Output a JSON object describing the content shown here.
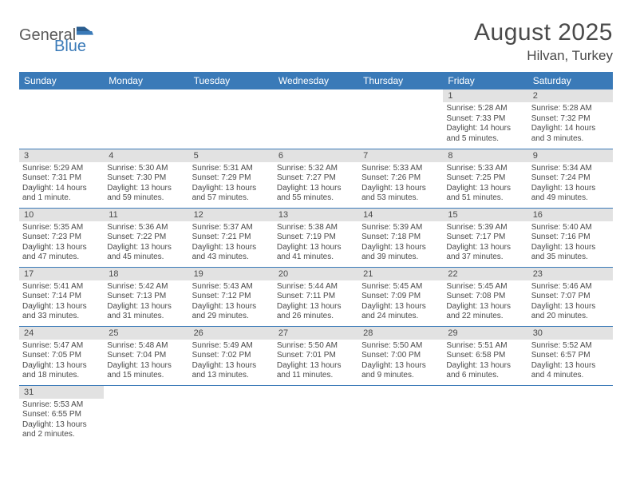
{
  "logo": {
    "general": "General",
    "blue": "Blue"
  },
  "title": "August 2025",
  "location": "Hilvan, Turkey",
  "weekdays": [
    "Sunday",
    "Monday",
    "Tuesday",
    "Wednesday",
    "Thursday",
    "Friday",
    "Saturday"
  ],
  "colors": {
    "header_bg": "#3a7ab8",
    "daynum_bg": "#e2e2e2",
    "border": "#3a7ab8",
    "text": "#4a4a4a"
  },
  "weeks": [
    [
      {
        "n": "",
        "sr": "",
        "ss": "",
        "dl": ""
      },
      {
        "n": "",
        "sr": "",
        "ss": "",
        "dl": ""
      },
      {
        "n": "",
        "sr": "",
        "ss": "",
        "dl": ""
      },
      {
        "n": "",
        "sr": "",
        "ss": "",
        "dl": ""
      },
      {
        "n": "",
        "sr": "",
        "ss": "",
        "dl": ""
      },
      {
        "n": "1",
        "sr": "Sunrise: 5:28 AM",
        "ss": "Sunset: 7:33 PM",
        "dl": "Daylight: 14 hours and 5 minutes."
      },
      {
        "n": "2",
        "sr": "Sunrise: 5:28 AM",
        "ss": "Sunset: 7:32 PM",
        "dl": "Daylight: 14 hours and 3 minutes."
      }
    ],
    [
      {
        "n": "3",
        "sr": "Sunrise: 5:29 AM",
        "ss": "Sunset: 7:31 PM",
        "dl": "Daylight: 14 hours and 1 minute."
      },
      {
        "n": "4",
        "sr": "Sunrise: 5:30 AM",
        "ss": "Sunset: 7:30 PM",
        "dl": "Daylight: 13 hours and 59 minutes."
      },
      {
        "n": "5",
        "sr": "Sunrise: 5:31 AM",
        "ss": "Sunset: 7:29 PM",
        "dl": "Daylight: 13 hours and 57 minutes."
      },
      {
        "n": "6",
        "sr": "Sunrise: 5:32 AM",
        "ss": "Sunset: 7:27 PM",
        "dl": "Daylight: 13 hours and 55 minutes."
      },
      {
        "n": "7",
        "sr": "Sunrise: 5:33 AM",
        "ss": "Sunset: 7:26 PM",
        "dl": "Daylight: 13 hours and 53 minutes."
      },
      {
        "n": "8",
        "sr": "Sunrise: 5:33 AM",
        "ss": "Sunset: 7:25 PM",
        "dl": "Daylight: 13 hours and 51 minutes."
      },
      {
        "n": "9",
        "sr": "Sunrise: 5:34 AM",
        "ss": "Sunset: 7:24 PM",
        "dl": "Daylight: 13 hours and 49 minutes."
      }
    ],
    [
      {
        "n": "10",
        "sr": "Sunrise: 5:35 AM",
        "ss": "Sunset: 7:23 PM",
        "dl": "Daylight: 13 hours and 47 minutes."
      },
      {
        "n": "11",
        "sr": "Sunrise: 5:36 AM",
        "ss": "Sunset: 7:22 PM",
        "dl": "Daylight: 13 hours and 45 minutes."
      },
      {
        "n": "12",
        "sr": "Sunrise: 5:37 AM",
        "ss": "Sunset: 7:21 PM",
        "dl": "Daylight: 13 hours and 43 minutes."
      },
      {
        "n": "13",
        "sr": "Sunrise: 5:38 AM",
        "ss": "Sunset: 7:19 PM",
        "dl": "Daylight: 13 hours and 41 minutes."
      },
      {
        "n": "14",
        "sr": "Sunrise: 5:39 AM",
        "ss": "Sunset: 7:18 PM",
        "dl": "Daylight: 13 hours and 39 minutes."
      },
      {
        "n": "15",
        "sr": "Sunrise: 5:39 AM",
        "ss": "Sunset: 7:17 PM",
        "dl": "Daylight: 13 hours and 37 minutes."
      },
      {
        "n": "16",
        "sr": "Sunrise: 5:40 AM",
        "ss": "Sunset: 7:16 PM",
        "dl": "Daylight: 13 hours and 35 minutes."
      }
    ],
    [
      {
        "n": "17",
        "sr": "Sunrise: 5:41 AM",
        "ss": "Sunset: 7:14 PM",
        "dl": "Daylight: 13 hours and 33 minutes."
      },
      {
        "n": "18",
        "sr": "Sunrise: 5:42 AM",
        "ss": "Sunset: 7:13 PM",
        "dl": "Daylight: 13 hours and 31 minutes."
      },
      {
        "n": "19",
        "sr": "Sunrise: 5:43 AM",
        "ss": "Sunset: 7:12 PM",
        "dl": "Daylight: 13 hours and 29 minutes."
      },
      {
        "n": "20",
        "sr": "Sunrise: 5:44 AM",
        "ss": "Sunset: 7:11 PM",
        "dl": "Daylight: 13 hours and 26 minutes."
      },
      {
        "n": "21",
        "sr": "Sunrise: 5:45 AM",
        "ss": "Sunset: 7:09 PM",
        "dl": "Daylight: 13 hours and 24 minutes."
      },
      {
        "n": "22",
        "sr": "Sunrise: 5:45 AM",
        "ss": "Sunset: 7:08 PM",
        "dl": "Daylight: 13 hours and 22 minutes."
      },
      {
        "n": "23",
        "sr": "Sunrise: 5:46 AM",
        "ss": "Sunset: 7:07 PM",
        "dl": "Daylight: 13 hours and 20 minutes."
      }
    ],
    [
      {
        "n": "24",
        "sr": "Sunrise: 5:47 AM",
        "ss": "Sunset: 7:05 PM",
        "dl": "Daylight: 13 hours and 18 minutes."
      },
      {
        "n": "25",
        "sr": "Sunrise: 5:48 AM",
        "ss": "Sunset: 7:04 PM",
        "dl": "Daylight: 13 hours and 15 minutes."
      },
      {
        "n": "26",
        "sr": "Sunrise: 5:49 AM",
        "ss": "Sunset: 7:02 PM",
        "dl": "Daylight: 13 hours and 13 minutes."
      },
      {
        "n": "27",
        "sr": "Sunrise: 5:50 AM",
        "ss": "Sunset: 7:01 PM",
        "dl": "Daylight: 13 hours and 11 minutes."
      },
      {
        "n": "28",
        "sr": "Sunrise: 5:50 AM",
        "ss": "Sunset: 7:00 PM",
        "dl": "Daylight: 13 hours and 9 minutes."
      },
      {
        "n": "29",
        "sr": "Sunrise: 5:51 AM",
        "ss": "Sunset: 6:58 PM",
        "dl": "Daylight: 13 hours and 6 minutes."
      },
      {
        "n": "30",
        "sr": "Sunrise: 5:52 AM",
        "ss": "Sunset: 6:57 PM",
        "dl": "Daylight: 13 hours and 4 minutes."
      }
    ],
    [
      {
        "n": "31",
        "sr": "Sunrise: 5:53 AM",
        "ss": "Sunset: 6:55 PM",
        "dl": "Daylight: 13 hours and 2 minutes."
      },
      {
        "n": "",
        "sr": "",
        "ss": "",
        "dl": ""
      },
      {
        "n": "",
        "sr": "",
        "ss": "",
        "dl": ""
      },
      {
        "n": "",
        "sr": "",
        "ss": "",
        "dl": ""
      },
      {
        "n": "",
        "sr": "",
        "ss": "",
        "dl": ""
      },
      {
        "n": "",
        "sr": "",
        "ss": "",
        "dl": ""
      },
      {
        "n": "",
        "sr": "",
        "ss": "",
        "dl": ""
      }
    ]
  ]
}
